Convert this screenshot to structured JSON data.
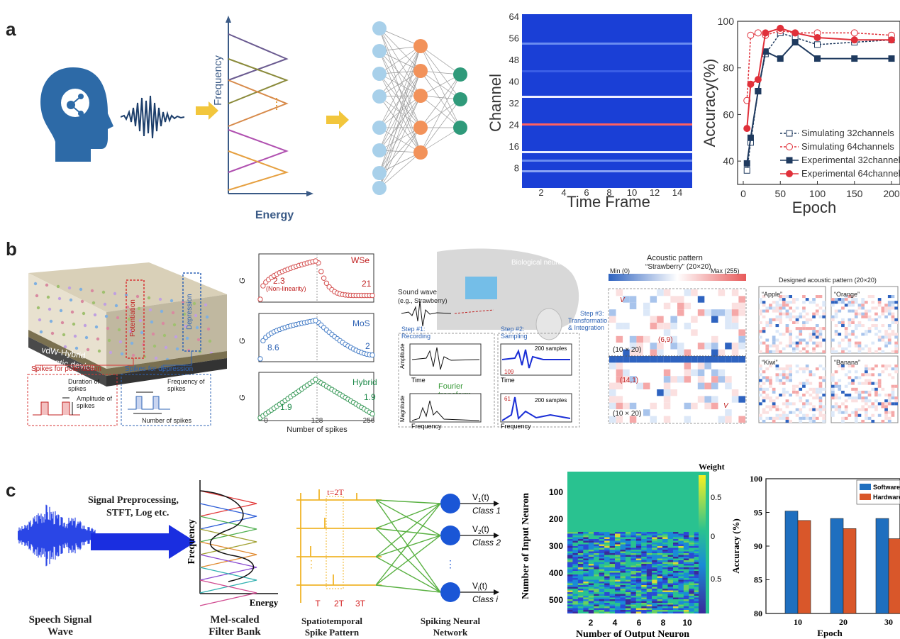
{
  "panel_labels": {
    "a": "a",
    "b": "b",
    "c": "c"
  },
  "row_a": {
    "filter_ylabel": "Frequency",
    "filter_xlabel": "Energy",
    "heatmap": {
      "ylabel": "Channel",
      "xlabel": "Time Frame",
      "yticks": [
        "64",
        "56",
        "48",
        "40",
        "32",
        "24",
        "16",
        "8"
      ],
      "xticks": [
        "2",
        "4",
        "6",
        "8",
        "10",
        "12",
        "14"
      ]
    },
    "accuracy_chart": {
      "ylabel": "Accuracy(%)",
      "xlabel": "Epoch",
      "legend": [
        "Simulating 32channels",
        "Simulating 64channels",
        "Experimental 32channels",
        "Experimental 64channels"
      ]
    }
  },
  "row_b": {
    "device": {
      "potentiation": "Potentiation",
      "depression": "Depression",
      "device_name_1": "vdW-Hybrid",
      "device_name_2": "synaptic device",
      "spikes_pot": "Spikes for potentiation",
      "spikes_dep": "Spikes for depression",
      "duration": "Duration of spikes",
      "amplitude": "Amplitude of spikes",
      "frequency": "Frequency of spikes",
      "number": "Number of spikes"
    },
    "conductance": {
      "xlabel": "Number of spikes",
      "xticks": [
        "0",
        "128",
        "256"
      ],
      "wse2": "WSe",
      "mos2": "MoS",
      "hybrid": "Hybrid",
      "v_wse2_l": "2.3",
      "nonlin": "(Non-linearity)",
      "v_wse2_r": "21",
      "v_mos2_l": "8.6",
      "v_mos2_r": "2",
      "v_hyb_l": "1.9",
      "v_hyb_r": "1.9",
      "ylabels": [
        "G",
        "G",
        "G"
      ]
    },
    "pipeline": {
      "bio": "Biological neural networks",
      "sound": "Sound wave",
      "example": "(e.g., Strawberry)",
      "step1": "Step #1:",
      "step1b": "Recording",
      "step2": "Step #2:",
      "step2b": "Sampling",
      "step3": "Step #3:",
      "step3b": "Transformation",
      "step3c": "& Integration",
      "amplitude": "Amplitude",
      "time": "Time",
      "magnitude": "Magnitude",
      "frequency": "Frequency",
      "fourier": "Fourier",
      "transform": "transform",
      "samples": "200 samples",
      "th109": "109",
      "st61": "61"
    },
    "pattern": {
      "title": "Acoustic pattern",
      "subtitle": "“Strawberry” (20×20)",
      "min": "Min (0)",
      "max": "Max (255)",
      "dim": "(10 × 20)",
      "dim2": "(10 × 20)",
      "v1": "V",
      "v400": "V",
      "p69": "(6,9)",
      "p141": "(14,1)"
    },
    "designed": {
      "title": "Designed acoustic pattern (20×20)",
      "names": [
        "“Apple”",
        "“Orange”",
        "“Kiwi”",
        "“Banana”"
      ]
    }
  },
  "row_c": {
    "speech": "Speech Signal Wave",
    "preprocess1": "Signal Preprocessing,",
    "preprocess2": "STFT, Log etc.",
    "mel_y": "Frequency",
    "mel_x": "Energy",
    "mel_caption": "Mel-scaled Filter Bank",
    "spike_t2": "t=2T",
    "spike_ticks": [
      "T",
      "2T",
      "3T"
    ],
    "spike_caption": "Spatiotemporal Spike Pattern",
    "snn_outputs": [
      "V",
      "V",
      "V"
    ],
    "snn_classes": [
      "Class 1",
      "Class 2",
      "Class i"
    ],
    "snn_caption": "Spiking Neural Network",
    "weight": {
      "title": "Weight",
      "ylabel": "Number of Input Neuron",
      "xlabel": "Number of Output Neuron",
      "yticks": [
        "100",
        "200",
        "300",
        "400",
        "500"
      ],
      "xticks": [
        "2",
        "4",
        "6",
        "8",
        "10"
      ],
      "cbar": [
        "0.5",
        "0",
        "0.5"
      ]
    },
    "bar": {
      "ylabel": "Accuracy (%)",
      "xlabel": "Epoch",
      "legend": [
        "Software",
        "Hardware"
      ]
    }
  },
  "chart_data": [
    {
      "type": "line",
      "xlabel": "Epoch",
      "ylabel": "Accuracy(%)",
      "ylim": [
        30,
        100
      ],
      "xlim": [
        0,
        200
      ],
      "yticks": [
        40,
        60,
        80,
        100
      ],
      "xticks": [
        0,
        50,
        100,
        150,
        200
      ],
      "x": [
        5,
        10,
        20,
        30,
        50,
        70,
        100,
        150,
        200
      ],
      "series": [
        {
          "name": "Simulating 32channels",
          "values": [
            36,
            48,
            70,
            86,
            95,
            93,
            90,
            91,
            92
          ]
        },
        {
          "name": "Simulating 64channels",
          "values": [
            66,
            94,
            95,
            94,
            96,
            95,
            95,
            95,
            94
          ]
        },
        {
          "name": "Experimental 32channels",
          "values": [
            39,
            50,
            70,
            87,
            84,
            91,
            84,
            84,
            84
          ]
        },
        {
          "name": "Experimental 64channels",
          "values": [
            54,
            73,
            75,
            95,
            97,
            95,
            93,
            92,
            92
          ]
        }
      ],
      "colors": [
        "#1f3a5f",
        "#e0303a",
        "#1f3a5f",
        "#e0303a"
      ]
    },
    {
      "type": "bar",
      "xlabel": "Epoch",
      "ylabel": "Accuracy (%)",
      "categories": [
        "10",
        "20",
        "30"
      ],
      "ylim": [
        80,
        100
      ],
      "yticks": [
        80,
        85,
        90,
        95,
        100
      ],
      "series": [
        {
          "name": "Software",
          "values": [
            95.2,
            94.1,
            94.1
          ]
        },
        {
          "name": "Hardware",
          "values": [
            93.8,
            92.6,
            91.1
          ]
        }
      ],
      "colors": [
        "#1f6fbf",
        "#d9572a"
      ]
    }
  ]
}
